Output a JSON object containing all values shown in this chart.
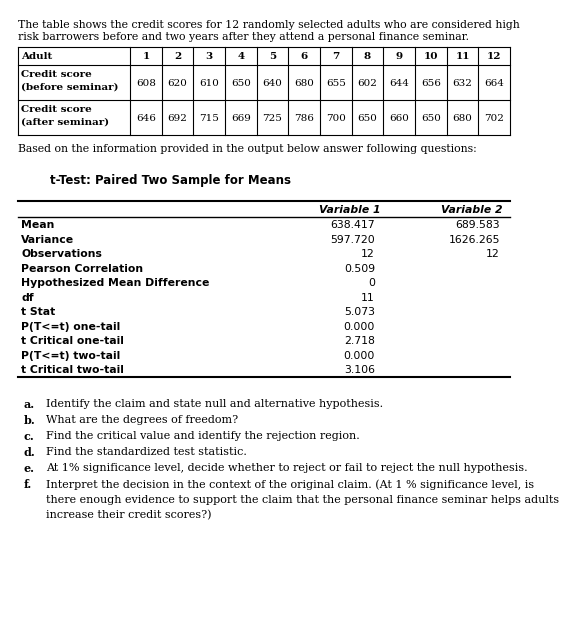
{
  "intro_text_line1": "The table shows the credit scores for 12 randomly selected adults who are considered high",
  "intro_text_line2": "risk barrowers before and two years after they attend a personal finance seminar.",
  "table1_headers": [
    "Adult",
    "1",
    "2",
    "3",
    "4",
    "5",
    "6",
    "7",
    "8",
    "9",
    "10",
    "11",
    "12"
  ],
  "table1_row1_label_line1": "Credit score",
  "table1_row1_label_line2": "(before seminar)",
  "table1_row1_values": [
    "608",
    "620",
    "610",
    "650",
    "640",
    "680",
    "655",
    "602",
    "644",
    "656",
    "632",
    "664"
  ],
  "table1_row2_label_line1": "Credit score",
  "table1_row2_label_line2": "(after seminar)",
  "table1_row2_values": [
    "646",
    "692",
    "715",
    "669",
    "725",
    "786",
    "700",
    "650",
    "660",
    "650",
    "680",
    "702"
  ],
  "based_text": "Based on the information provided in the output below answer following questions:",
  "ttest_title": "t-Test: Paired Two Sample for Means",
  "ttest_col1": "Variable 1",
  "ttest_col2": "Variable 2",
  "ttest_rows": [
    [
      "Mean",
      "638.417",
      "689.583"
    ],
    [
      "Variance",
      "597.720",
      "1626.265"
    ],
    [
      "Observations",
      "12",
      "12"
    ],
    [
      "Pearson Correlation",
      "0.509",
      ""
    ],
    [
      "Hypothesized Mean Difference",
      "0",
      ""
    ],
    [
      "df",
      "11",
      ""
    ],
    [
      "t Stat",
      "5.073",
      ""
    ],
    [
      "P(T<=t) one-tail",
      "0.000",
      ""
    ],
    [
      "t Critical one-tail",
      "2.718",
      ""
    ],
    [
      "P(T<=t) two-tail",
      "0.000",
      ""
    ],
    [
      "t Critical two-tail",
      "3.106",
      ""
    ]
  ],
  "questions": [
    [
      "a.",
      "Identify the claim and state null and alternative hypothesis."
    ],
    [
      "b.",
      "What are the degrees of freedom?"
    ],
    [
      "c.",
      "Find the critical value and identify the rejection region."
    ],
    [
      "d.",
      "Find the standardized test statistic."
    ],
    [
      "e.",
      "At 1% significance level, decide whether to reject or fail to reject the null hypothesis."
    ],
    [
      "f.",
      "Interpret the decision in the context of the original claim. (At 1 % significance level, is"
    ],
    [
      "",
      "there enough evidence to support the claim that the personal finance seminar helps adults"
    ],
    [
      "",
      "increase their credit scores?)"
    ]
  ],
  "bg_color": "#ffffff"
}
